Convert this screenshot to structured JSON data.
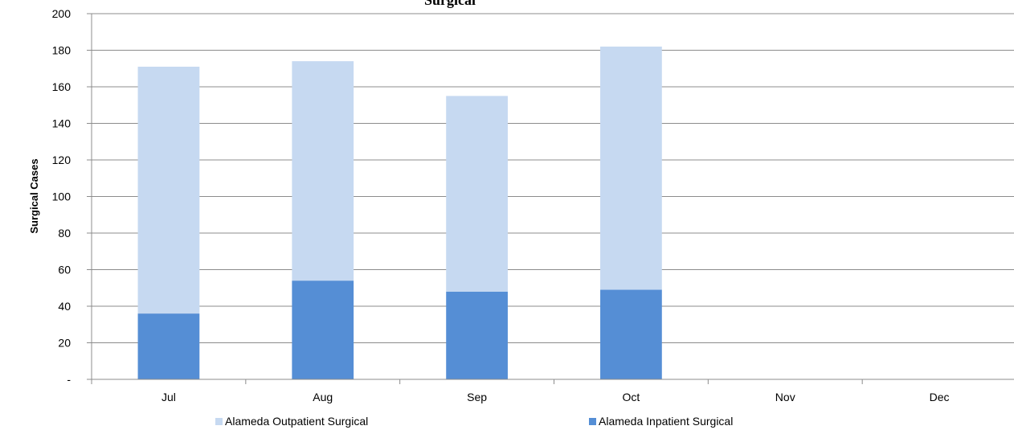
{
  "chart_data": {
    "type": "bar",
    "stacked": true,
    "title": "Surgical",
    "ylabel": "Surgical Cases",
    "xlabel": "",
    "categories": [
      "Jul",
      "Aug",
      "Sep",
      "Oct",
      "Nov",
      "Dec"
    ],
    "ylim": [
      0,
      200
    ],
    "yticks": [
      0,
      20,
      40,
      60,
      80,
      100,
      120,
      140,
      160,
      180,
      200
    ],
    "ytick_labels": [
      "-",
      "20",
      "40",
      "60",
      "80",
      "100",
      "120",
      "140",
      "160",
      "180",
      "200"
    ],
    "grid": true,
    "legend_position": "bottom",
    "series": [
      {
        "name": "Alameda Inpatient Surgical",
        "color": "#558ed5",
        "values": [
          36,
          54,
          48,
          49,
          null,
          null
        ]
      },
      {
        "name": "Alameda Outpatient Surgical",
        "color": "#c6d9f1",
        "values": [
          135,
          120,
          107,
          133,
          null,
          null
        ]
      }
    ],
    "legend_order": [
      1,
      0
    ]
  }
}
